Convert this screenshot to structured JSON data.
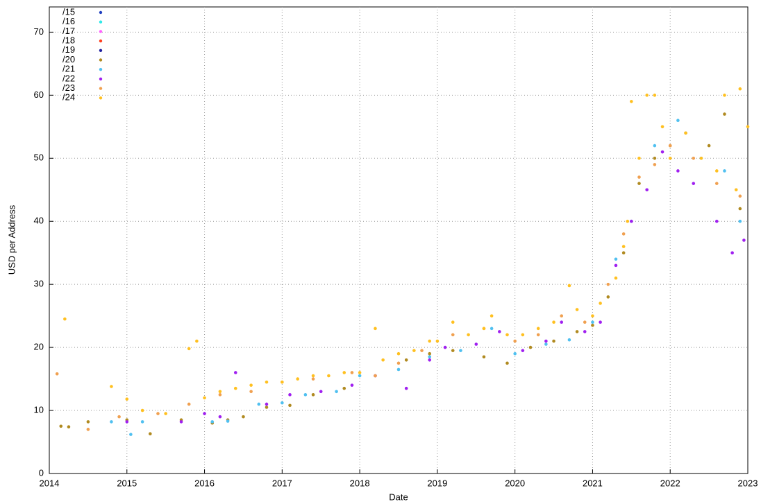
{
  "chart_data": {
    "type": "scatter",
    "xlabel": "Date",
    "ylabel": "USD per Address",
    "xlim": [
      2014,
      2023
    ],
    "xticks": [
      2014,
      2015,
      2016,
      2017,
      2018,
      2019,
      2020,
      2021,
      2022,
      2023
    ],
    "ylim": [
      0,
      74
    ],
    "yticks": [
      0,
      10,
      20,
      30,
      40,
      50,
      60,
      70
    ],
    "grid": true,
    "legend": "top-left",
    "series": [
      {
        "name": "/15",
        "color": "#2040c0",
        "x": [],
        "values": []
      },
      {
        "name": "/16",
        "color": "#30e8e8",
        "x": [],
        "values": []
      },
      {
        "name": "/17",
        "color": "#ff60ff",
        "x": [],
        "values": []
      },
      {
        "name": "/18",
        "color": "#ff4020",
        "x": [],
        "values": []
      },
      {
        "name": "/19",
        "color": "#2020a0",
        "x": [],
        "values": []
      },
      {
        "name": "/20",
        "color": "#b08a20",
        "x": [
          2014.15,
          2014.25,
          2014.5,
          2015.0,
          2015.3,
          2015.7,
          2016.1,
          2016.3,
          2016.5,
          2016.8,
          2017.1,
          2017.4,
          2017.8,
          2018.2,
          2018.6,
          2018.9,
          2019.2,
          2019.6,
          2019.9,
          2020.2,
          2020.5,
          2020.8,
          2021.0,
          2021.2,
          2021.4,
          2021.6,
          2021.8,
          2022.0,
          2022.2,
          2022.5,
          2022.7,
          2022.9
        ],
        "values": [
          7.5,
          7.4,
          8.2,
          8.5,
          6.3,
          8.5,
          8,
          8.5,
          9,
          10.5,
          10.8,
          12.5,
          13.5,
          15.5,
          18,
          19,
          19.5,
          18.5,
          17.5,
          20,
          21,
          22.5,
          23.5,
          28,
          35,
          46,
          50,
          52,
          54,
          52,
          57,
          42
        ]
      },
      {
        "name": "/21",
        "color": "#50c0f0",
        "x": [
          2014.8,
          2015.05,
          2015.2,
          2016.1,
          2016.3,
          2016.7,
          2017.0,
          2017.3,
          2017.7,
          2018.0,
          2018.5,
          2018.9,
          2019.3,
          2019.7,
          2020.0,
          2020.4,
          2020.7,
          2021.0,
          2021.3,
          2021.5,
          2021.8,
          2022.1,
          2022.4,
          2022.7,
          2022.9
        ],
        "values": [
          8.2,
          6.2,
          8.2,
          8.2,
          8.3,
          11,
          11.2,
          12.5,
          13,
          15.5,
          16.5,
          18.5,
          19.5,
          23,
          19,
          20.5,
          21.2,
          24,
          34,
          40,
          52,
          56,
          50,
          48,
          40
        ]
      },
      {
        "name": "/22",
        "color": "#a020f0",
        "x": [
          2015.0,
          2015.7,
          2016.0,
          2016.2,
          2016.4,
          2016.8,
          2017.1,
          2017.5,
          2017.9,
          2018.2,
          2018.6,
          2018.9,
          2019.1,
          2019.5,
          2019.8,
          2020.1,
          2020.4,
          2020.6,
          2020.9,
          2021.1,
          2021.3,
          2021.5,
          2021.7,
          2021.9,
          2022.1,
          2022.3,
          2022.6,
          2022.8,
          2022.95
        ],
        "values": [
          8.2,
          8.2,
          9.5,
          9,
          16,
          11,
          12.5,
          13,
          14,
          15.5,
          13.5,
          18,
          20,
          20.5,
          22.5,
          19.5,
          21,
          24,
          22.5,
          24,
          33,
          40,
          45,
          51,
          48,
          46,
          40,
          35,
          37
        ]
      },
      {
        "name": "/23",
        "color": "#f0a050",
        "x": [
          2014.1,
          2014.5,
          2014.9,
          2015.4,
          2015.8,
          2016.2,
          2016.6,
          2017.0,
          2017.4,
          2017.9,
          2018.2,
          2018.5,
          2018.8,
          2019.2,
          2019.6,
          2020.0,
          2020.3,
          2020.6,
          2020.9,
          2021.2,
          2021.4,
          2021.6,
          2021.8,
          2022.0,
          2022.3,
          2022.6,
          2022.9
        ],
        "values": [
          15.8,
          7,
          9,
          9.5,
          11,
          12.5,
          13,
          14.5,
          15,
          16,
          15.5,
          17.5,
          19.5,
          22,
          23,
          21,
          22,
          25,
          24,
          30,
          38,
          47,
          49,
          52,
          50,
          46,
          44
        ]
      },
      {
        "name": "/24",
        "color": "#ffc020",
        "x": [
          2014.2,
          2014.8,
          2015.0,
          2015.2,
          2015.5,
          2015.8,
          2015.9,
          2016.0,
          2016.2,
          2016.4,
          2016.6,
          2016.8,
          2017.0,
          2017.2,
          2017.4,
          2017.6,
          2017.8,
          2018.0,
          2018.2,
          2018.3,
          2018.5,
          2018.7,
          2018.9,
          2019.0,
          2019.2,
          2019.4,
          2019.6,
          2019.7,
          2019.9,
          2020.1,
          2020.3,
          2020.5,
          2020.7,
          2020.8,
          2021.0,
          2021.1,
          2021.3,
          2021.4,
          2021.5,
          2021.6,
          2021.7,
          2021.8,
          2021.9,
          2022.0,
          2022.2,
          2022.4,
          2022.6,
          2022.7,
          2022.9,
          2023.0,
          2021.45,
          2022.85
        ],
        "values": [
          24.5,
          13.8,
          11.8,
          10,
          9.5,
          19.8,
          21,
          12,
          13,
          13.5,
          14,
          14.5,
          14.5,
          15,
          15.5,
          15.5,
          16,
          16,
          23,
          18,
          19,
          19.5,
          21,
          21,
          24,
          22,
          23,
          25,
          22,
          22,
          23,
          24,
          29.8,
          26,
          25,
          27,
          31,
          36,
          59,
          50,
          60,
          60,
          55,
          50,
          54,
          50,
          48,
          60,
          61,
          55,
          40,
          45
        ]
      }
    ]
  }
}
